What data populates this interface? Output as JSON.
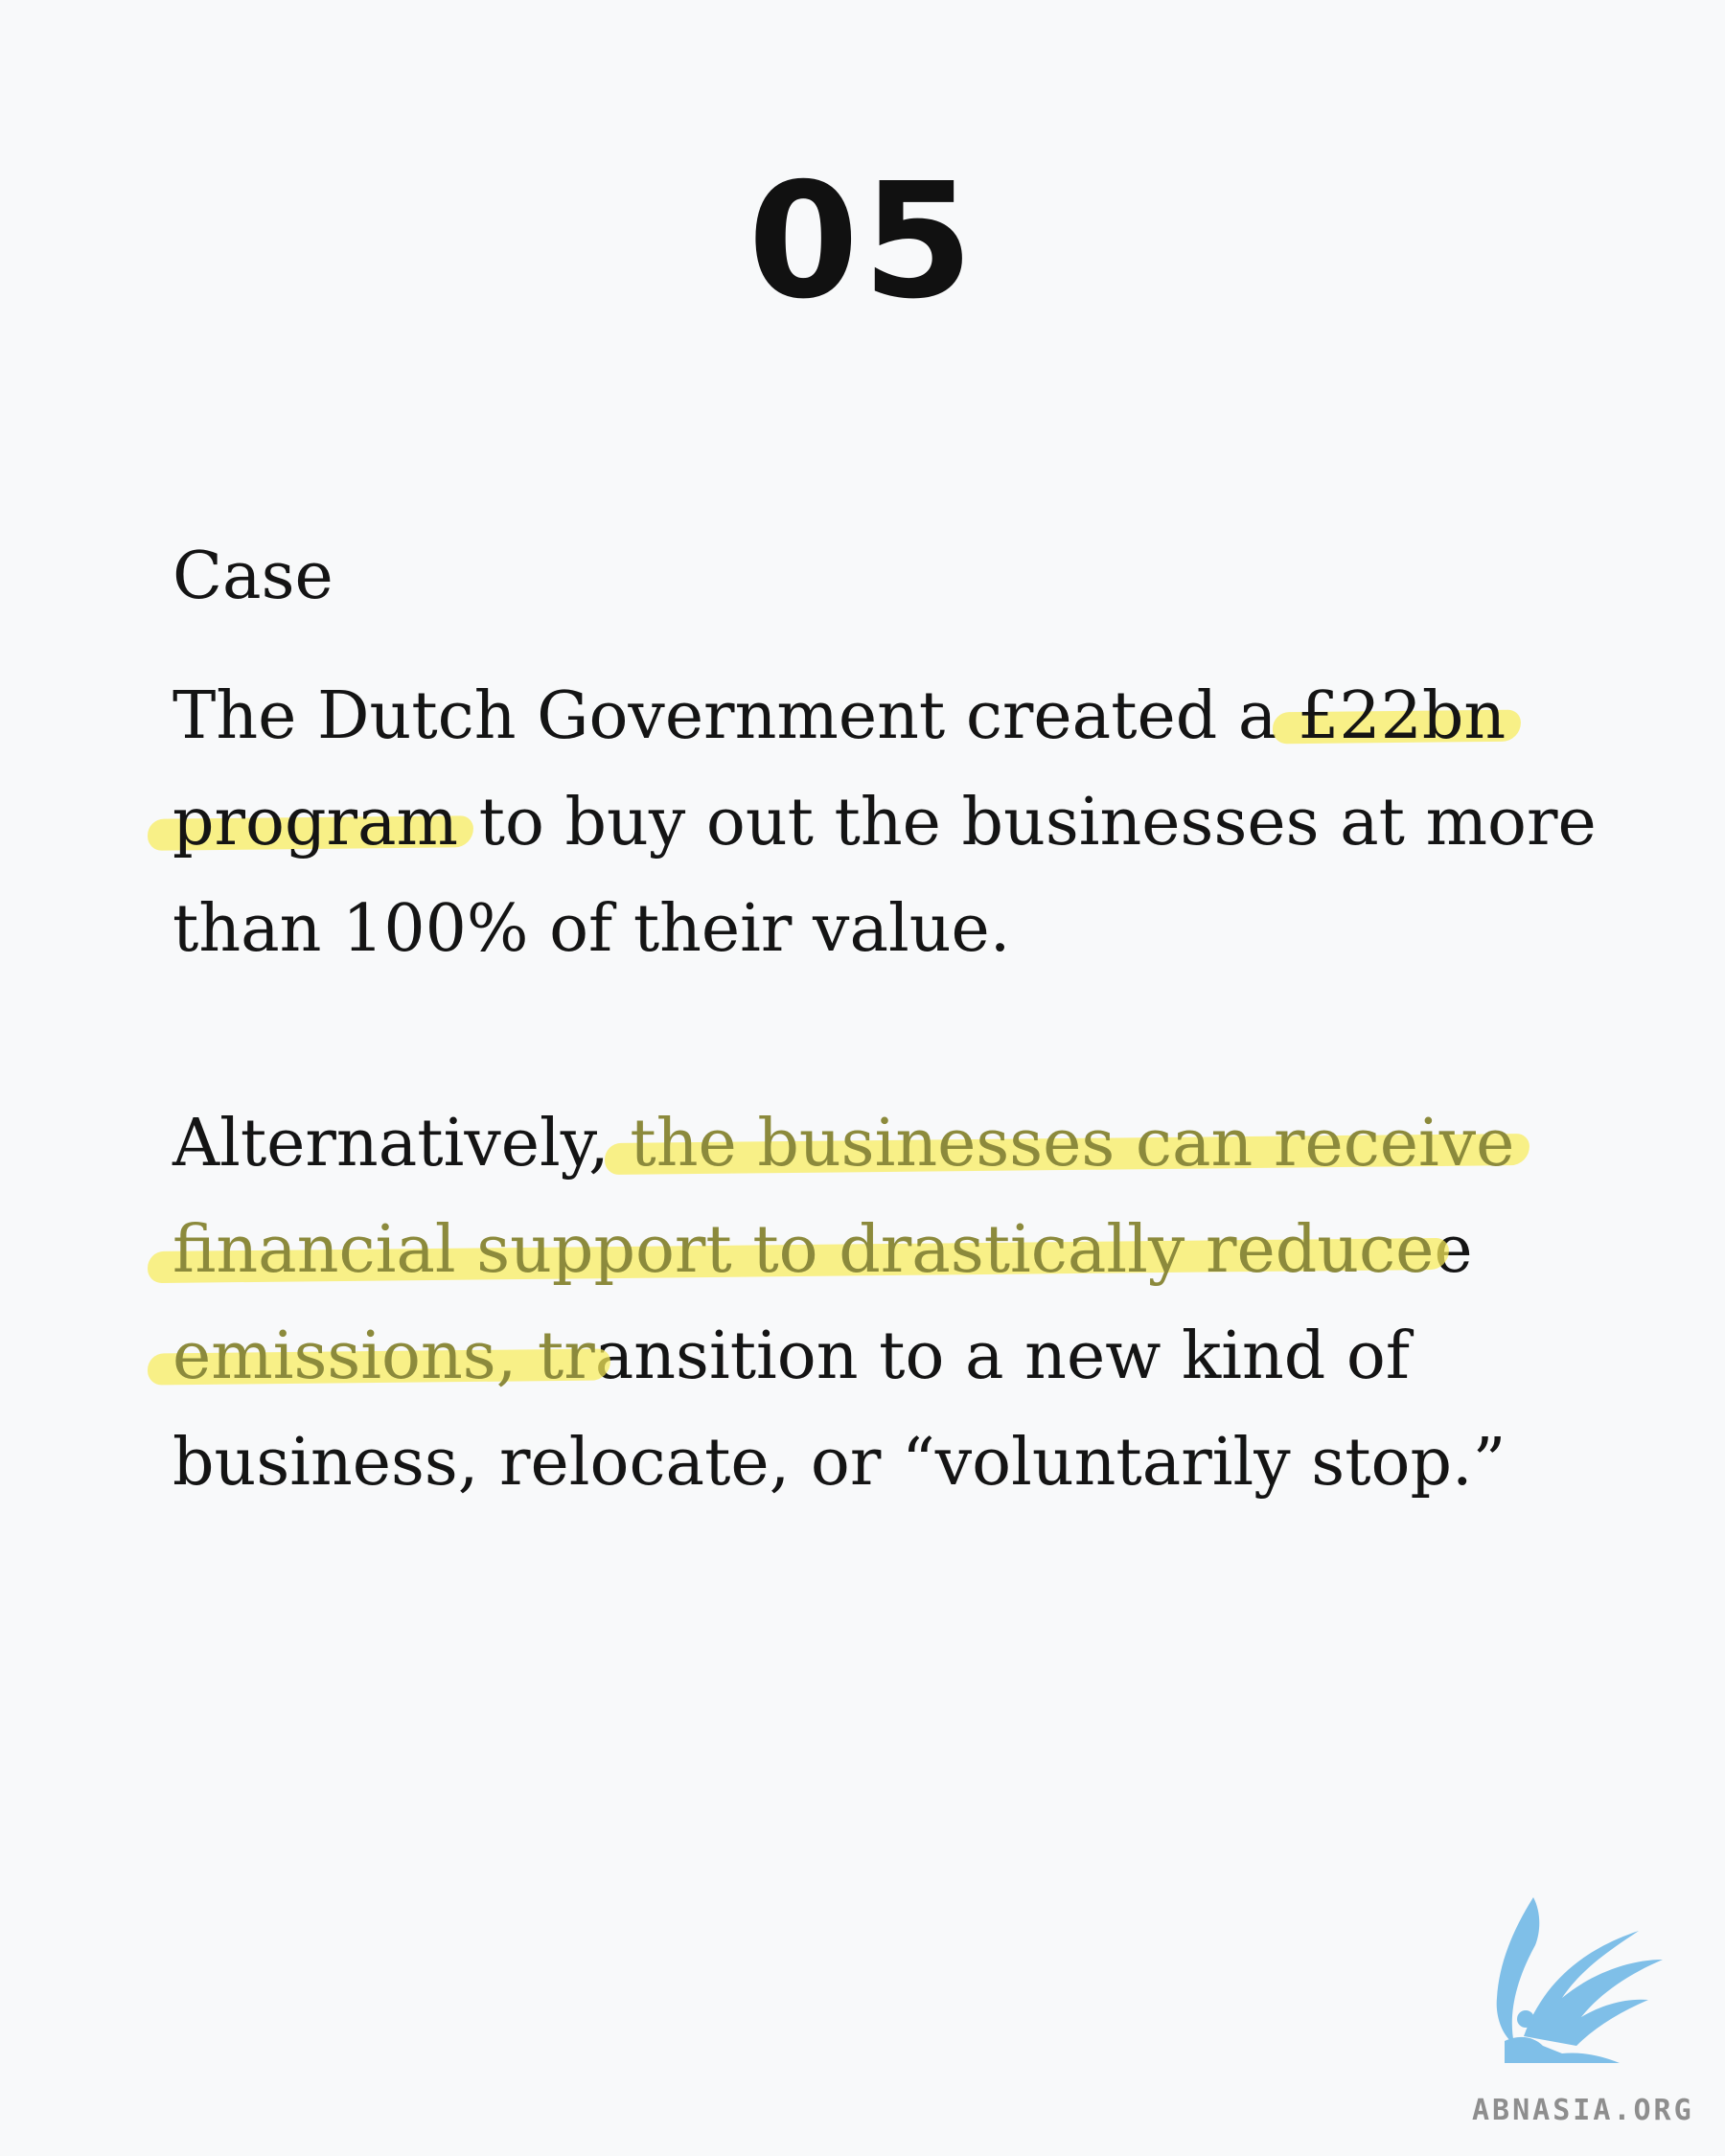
{
  "slide": {
    "number": "05"
  },
  "content": {
    "label": "Case",
    "paragraph_1": {
      "line_1_plain": "The Dutch Government created a ",
      "line_1_highlight": "£22bn",
      "line_2_highlight": "program",
      "line_2_plain": " to buy out the businesses at more",
      "line_3_plain": "than 100% of their value."
    },
    "paragraph_2": {
      "line_1_plain": "Alternatively, ",
      "line_1_highlight": "the businesses can receive",
      "line_2_highlight": "financial support to drastically reduce",
      "line_3_highlight": "emissions, tr",
      "line_3_plain": "ansition to a new kind of",
      "line_4_plain": "business, relocate, or “voluntarily stop.”"
    }
  },
  "branding": {
    "logo_icon": "griffin-logo-icon",
    "wordmark": "ABNASIA.ORG",
    "logo_color": "#7fbfe8"
  },
  "colors": {
    "background": "#f8f9fa",
    "text": "#141414",
    "highlight": "#f8ec5a"
  }
}
